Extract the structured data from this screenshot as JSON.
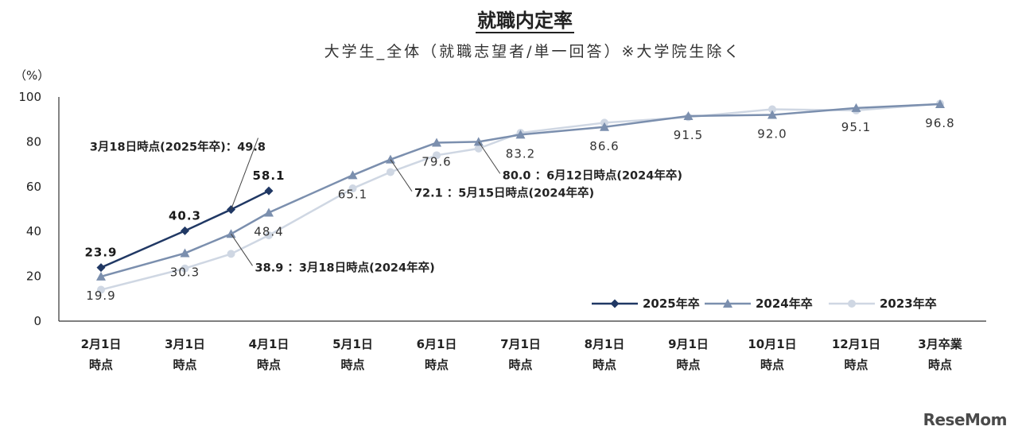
{
  "title": "就職内定率",
  "subtitle": "大学生_全体（就職志望者/単一回答）※大学院生除く",
  "unit_label": "（%）",
  "watermark": "ReseMom",
  "chart_data": {
    "type": "line",
    "title": "就職内定率",
    "subtitle": "大学生_全体（就職志望者/単一回答）※大学院生除く",
    "ylabel": "（%）",
    "ylim": [
      0,
      100
    ],
    "yticks": [
      0,
      20,
      40,
      60,
      80,
      100
    ],
    "grid": false,
    "legend_position": "bottom-right",
    "categories": [
      [
        "2月1日",
        "時点"
      ],
      [
        "3月1日",
        "時点"
      ],
      [
        "4月1日",
        "時点"
      ],
      [
        "5月1日",
        "時点"
      ],
      [
        "6月1日",
        "時点"
      ],
      [
        "7月1日",
        "時点"
      ],
      [
        "8月1日",
        "時点"
      ],
      [
        "9月1日",
        "時点"
      ],
      [
        "10月1日",
        "時点"
      ],
      [
        "12月1日",
        "時点"
      ],
      [
        "3月卒業",
        "時点"
      ]
    ],
    "series": [
      {
        "name": "2025年卒",
        "color": "#203864",
        "marker": "diamond",
        "points": [
          {
            "x": 0,
            "y": 23.9
          },
          {
            "x": 1,
            "y": 40.3
          },
          {
            "x": 1.55,
            "y": 49.8
          },
          {
            "x": 2,
            "y": 58.1
          }
        ]
      },
      {
        "name": "2024年卒",
        "color": "#7b8fae",
        "marker": "triangle",
        "points": [
          {
            "x": 0,
            "y": 19.9
          },
          {
            "x": 1,
            "y": 30.3
          },
          {
            "x": 1.55,
            "y": 38.9
          },
          {
            "x": 2,
            "y": 48.4
          },
          {
            "x": 3,
            "y": 65.1
          },
          {
            "x": 3.45,
            "y": 72.1
          },
          {
            "x": 4,
            "y": 79.6
          },
          {
            "x": 4.5,
            "y": 80.0
          },
          {
            "x": 5,
            "y": 83.2
          },
          {
            "x": 6,
            "y": 86.6
          },
          {
            "x": 7,
            "y": 91.5
          },
          {
            "x": 8,
            "y": 92.0
          },
          {
            "x": 9,
            "y": 95.1
          },
          {
            "x": 10,
            "y": 96.8
          }
        ]
      },
      {
        "name": "2023年卒",
        "color": "#cfd7e3",
        "marker": "circle",
        "points": [
          {
            "x": 0,
            "y": 14.0
          },
          {
            "x": 1,
            "y": 23.5
          },
          {
            "x": 1.55,
            "y": 30.0
          },
          {
            "x": 2,
            "y": 38.3
          },
          {
            "x": 3,
            "y": 59.2
          },
          {
            "x": 3.45,
            "y": 66.5
          },
          {
            "x": 4,
            "y": 74.0
          },
          {
            "x": 4.5,
            "y": 77.0
          },
          {
            "x": 5,
            "y": 84.0
          },
          {
            "x": 6,
            "y": 88.5
          },
          {
            "x": 7,
            "y": 91.0
          },
          {
            "x": 8,
            "y": 94.5
          },
          {
            "x": 9,
            "y": 94.0
          },
          {
            "x": 10,
            "y": 97.0
          }
        ]
      }
    ],
    "data_labels": [
      {
        "text": "23.9",
        "x": 0,
        "y": 23.9,
        "series": "2025年卒",
        "bold": true,
        "pos": "above"
      },
      {
        "text": "40.3",
        "x": 1,
        "y": 40.3,
        "series": "2025年卒",
        "bold": true,
        "pos": "above"
      },
      {
        "text": "58.1",
        "x": 2,
        "y": 58.1,
        "series": "2025年卒",
        "bold": true,
        "pos": "above"
      },
      {
        "text": "19.9",
        "x": 0,
        "y": 19.9,
        "series": "2024年卒",
        "pos": "below"
      },
      {
        "text": "30.3",
        "x": 1,
        "y": 30.3,
        "series": "2024年卒",
        "pos": "below"
      },
      {
        "text": "48.4",
        "x": 2,
        "y": 48.4,
        "series": "2024年卒",
        "pos": "below"
      },
      {
        "text": "65.1",
        "x": 3,
        "y": 65.1,
        "series": "2024年卒",
        "pos": "below"
      },
      {
        "text": "79.6",
        "x": 4,
        "y": 79.6,
        "series": "2024年卒",
        "pos": "below"
      },
      {
        "text": "83.2",
        "x": 5,
        "y": 83.2,
        "series": "2024年卒",
        "pos": "below"
      },
      {
        "text": "86.6",
        "x": 6,
        "y": 86.6,
        "series": "2024年卒",
        "pos": "below"
      },
      {
        "text": "91.5",
        "x": 7,
        "y": 91.5,
        "series": "2024年卒",
        "pos": "below"
      },
      {
        "text": "92.0",
        "x": 8,
        "y": 92.0,
        "series": "2024年卒",
        "pos": "below"
      },
      {
        "text": "95.1",
        "x": 9,
        "y": 95.1,
        "series": "2024年卒",
        "pos": "below"
      },
      {
        "text": "96.8",
        "x": 10,
        "y": 96.8,
        "series": "2024年卒",
        "pos": "below"
      }
    ],
    "annotations": [
      {
        "text": "3月18日時点(2025年卒)：49.8",
        "x": 1.55,
        "y": 49.8,
        "series": "2025年卒",
        "side": "upper-left"
      },
      {
        "text": "38.9 ：3月18日時点(2024年卒)",
        "x": 1.55,
        "y": 38.9,
        "series": "2024年卒",
        "side": "lower-right"
      },
      {
        "text": "72.1 ：5月15日時点(2024年卒)",
        "x": 3.45,
        "y": 72.1,
        "series": "2024年卒",
        "side": "lower-right"
      },
      {
        "text": "80.0 ：6月12日時点(2024年卒)",
        "x": 4.5,
        "y": 80.0,
        "series": "2024年卒",
        "side": "lower-right"
      }
    ]
  }
}
